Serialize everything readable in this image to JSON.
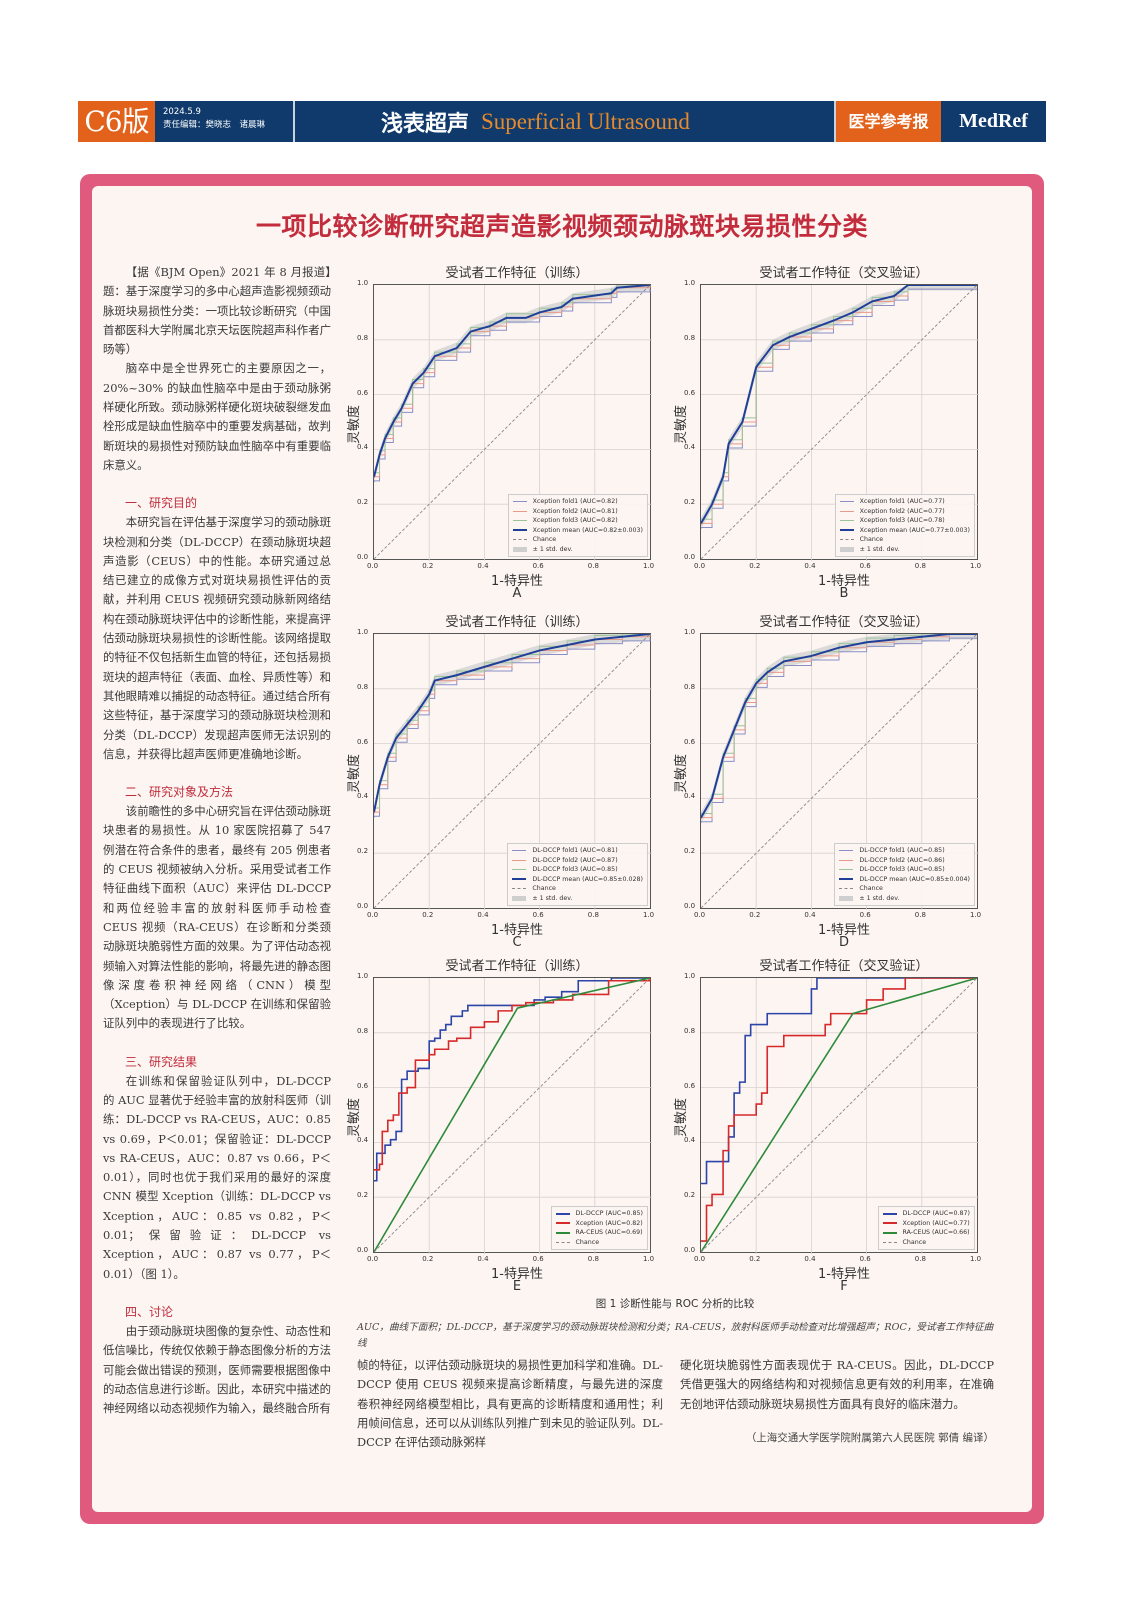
{
  "masthead": {
    "edition": "C6版",
    "date": "2024.5.9",
    "editors": "责任编辑：樊晓志　诸晨琳",
    "section_zh": "浅表超声",
    "section_en": "Superficial Ultrasound",
    "brand_zh": "医学参考报",
    "brand_en": "MedRef"
  },
  "article": {
    "headline": "一项比较诊断研究超声造影视频颈动脉斑块易损性分类",
    "intro": "【据《BJM Open》2021 年 8 月报道】题：基于深度学习的多中心超声造影视频颈动脉斑块易损性分类：一项比较诊断研究（中国首都医科大学附属北京天坛医院超声科作者广旸等）",
    "background": "脑卒中是全世界死亡的主要原因之一，20%~30% 的缺血性脑卒中是由于颈动脉粥样硬化所致。颈动脉粥样硬化斑块破裂继发血栓形成是缺血性脑卒中的重要发病基础，故判断斑块的易损性对预防缺血性脑卒中有重要临床意义。",
    "sections": [
      {
        "heading": "一、研究目的",
        "body": "本研究旨在评估基于深度学习的颈动脉斑块检测和分类（DL-DCCP）在颈动脉斑块超声造影（CEUS）中的性能。本研究通过总结已建立的成像方式对斑块易损性评估的贡献，并利用 CEUS 视频研究颈动脉新网络结构在颈动脉斑块评估中的诊断性能，来提高评估颈动脉斑块易损性的诊断性能。该网络提取的特征不仅包括新生血管的特征，还包括易损斑块的超声特征（表面、血栓、异质性等）和其他眼睛难以捕捉的动态特征。通过结合所有这些特征，基于深度学习的颈动脉斑块检测和分类（DL-DCCP）发现超声医师无法识别的信息，并获得比超声医师更准确地诊断。"
      },
      {
        "heading": "二、研究对象及方法",
        "body": "该前瞻性的多中心研究旨在评估颈动脉斑块患者的易损性。从 10 家医院招募了 547 例潜在符合条件的患者，最终有 205 例患者的 CEUS 视频被纳入分析。采用受试者工作特征曲线下面积（AUC）来评估 DL-DCCP 和两位经验丰富的放射科医师手动检查 CEUS 视频（RA-CEUS）在诊断和分类颈动脉斑块脆弱性方面的效果。为了评估动态视频输入对算法性能的影响，将最先进的静态图像深度卷积神经网络（CNN）模型（Xception）与 DL-DCCP 在训练和保留验证队列中的表现进行了比较。"
      },
      {
        "heading": "三、研究结果",
        "body": "在训练和保留验证队列中，DL-DCCP 的 AUC 显著优于经验丰富的放射科医师（训练：DL-DCCP vs RA-CEUS，AUC：0.85 vs 0.69，P＜0.01；保留验证：DL-DCCP vs RA-CEUS，AUC：0.87 vs 0.66，P＜0.01），同时也优于我们采用的最好的深度 CNN 模型 Xception（训练：DL-DCCP vs Xception，AUC：0.85 vs 0.82，P＜0.01；保留验证：DL-DCCP vs Xception，AUC：0.87 vs 0.77，P＜0.01）（图 1）。"
      },
      {
        "heading": "四、讨论",
        "body": "由于颈动脉斑块图像的复杂性、动态性和低信噪比，传统仅依赖于静态图像分析的方法可能会做出错误的预测，医师需要根据图像中的动态信息进行诊断。因此，本研究中描述的神经网络以动态视频作为输入，最终融合所有"
      }
    ],
    "continuation_col2": "帧的特征，以评估颈动脉斑块的易损性更加科学和准确。DL-DCCP 使用 CEUS 视频来提高诊断精度，与最先进的深度卷积神经网络模型相比，具有更高的诊断精度和通用性；利用帧间信息，还可以从训练队列推广到未见的验证队列。DL-DCCP 在评估颈动脉粥样",
    "continuation_col3": "硬化斑块脆弱性方面表现优于 RA-CEUS。因此，DL-DCCP 凭借更强大的网络结构和对视频信息更有效的利用率，在准确无创地评估颈动脉斑块易损性方面具有良好的临床潜力。",
    "credit": "（上海交通大学医学院附属第六人民医院 郭倩 编译）"
  },
  "figure": {
    "caption": "图 1  诊断性能与 ROC 分析的比较",
    "note": "AUC，曲线下面积；DL-DCCP，基于深度学习的颈动脉斑块检测和分类；RA-CEUS，放射科医师手动检查对比增强超声；ROC，受试者工作特征曲线",
    "xlabel": "1-特异性",
    "ylabel": "灵敏度",
    "ticks": [
      "0.0",
      "0.2",
      "0.4",
      "0.6",
      "0.8",
      "1.0"
    ]
  },
  "chart_data": [
    {
      "panel": "A",
      "type": "line",
      "title": "受试者工作特征（训练）",
      "xlabel": "1-特异性",
      "ylabel": "灵敏度",
      "xlim": [
        0,
        1
      ],
      "ylim": [
        0,
        1
      ],
      "grid": true,
      "legend_position": "lower right",
      "legend": [
        "Xception fold1 (AUC=0.82)",
        "Xception fold2 (AUC=0.81)",
        "Xception fold3 (AUC=0.82)",
        "Xception mean (AUC=0.82±0.003)",
        "Chance",
        "± 1 std. dev."
      ],
      "series": [
        {
          "name": "Xception mean (AUC=0.82±0.003)",
          "color": "#1f3f99",
          "x": [
            0,
            0.02,
            0.04,
            0.07,
            0.1,
            0.14,
            0.18,
            0.22,
            0.3,
            0.35,
            0.42,
            0.48,
            0.55,
            0.6,
            0.68,
            0.72,
            0.86,
            0.88,
            1.0
          ],
          "y": [
            0.3,
            0.38,
            0.44,
            0.5,
            0.55,
            0.64,
            0.68,
            0.74,
            0.77,
            0.83,
            0.85,
            0.88,
            0.88,
            0.9,
            0.92,
            0.95,
            0.97,
            0.99,
            1.0
          ]
        },
        {
          "name": "Chance",
          "color": "#888888",
          "x": [
            0,
            1
          ],
          "y": [
            0,
            1
          ]
        }
      ]
    },
    {
      "panel": "B",
      "type": "line",
      "title": "受试者工作特征（交叉验证）",
      "xlabel": "1-特异性",
      "ylabel": "灵敏度",
      "xlim": [
        0,
        1
      ],
      "ylim": [
        0,
        1
      ],
      "grid": true,
      "legend_position": "lower right",
      "legend": [
        "Xception fold1 (AUC=0.77)",
        "Xception fold2 (AUC=0.77)",
        "Xception fold3 (AUC=0.78)",
        "Xception mean (AUC=0.77±0.003)",
        "Chance",
        "± 1 std. dev."
      ],
      "series": [
        {
          "name": "Xception mean (AUC=0.77±0.003)",
          "color": "#1f3f99",
          "x": [
            0,
            0.04,
            0.08,
            0.1,
            0.15,
            0.2,
            0.26,
            0.32,
            0.4,
            0.48,
            0.55,
            0.62,
            0.7,
            0.75,
            1.0
          ],
          "y": [
            0.13,
            0.2,
            0.3,
            0.42,
            0.5,
            0.7,
            0.78,
            0.81,
            0.84,
            0.87,
            0.9,
            0.94,
            0.96,
            1.0,
            1.0
          ]
        },
        {
          "name": "Chance",
          "color": "#888888",
          "x": [
            0,
            1
          ],
          "y": [
            0,
            1
          ]
        }
      ]
    },
    {
      "panel": "C",
      "type": "line",
      "title": "受试者工作特征（训练）",
      "xlabel": "1-特异性",
      "ylabel": "灵敏度",
      "xlim": [
        0,
        1
      ],
      "ylim": [
        0,
        1
      ],
      "grid": true,
      "legend_position": "lower right",
      "legend": [
        "DL-DCCP fold1 (AUC=0.81)",
        "DL-DCCP fold2 (AUC=0.87)",
        "DL-DCCP fold3 (AUC=0.85)",
        "DL-DCCP mean (AUC=0.85±0.028)",
        "Chance",
        "± 1 std. dev."
      ],
      "series": [
        {
          "name": "DL-DCCP mean (AUC=0.85±0.028)",
          "color": "#1f3f99",
          "x": [
            0,
            0.02,
            0.05,
            0.08,
            0.12,
            0.16,
            0.2,
            0.22,
            0.3,
            0.4,
            0.5,
            0.6,
            0.7,
            0.8,
            0.9,
            1.0
          ],
          "y": [
            0.35,
            0.45,
            0.55,
            0.62,
            0.67,
            0.72,
            0.78,
            0.83,
            0.85,
            0.88,
            0.91,
            0.94,
            0.96,
            0.98,
            0.99,
            1.0
          ]
        },
        {
          "name": "Chance",
          "color": "#888888",
          "x": [
            0,
            1
          ],
          "y": [
            0,
            1
          ]
        }
      ]
    },
    {
      "panel": "D",
      "type": "line",
      "title": "受试者工作特征（交叉验证）",
      "xlabel": "1-特异性",
      "ylabel": "灵敏度",
      "xlim": [
        0,
        1
      ],
      "ylim": [
        0,
        1
      ],
      "grid": true,
      "legend_position": "lower right",
      "legend": [
        "DL-DCCP fold1 (AUC=0.85)",
        "DL-DCCP fold2 (AUC=0.86)",
        "DL-DCCP fold3 (AUC=0.85)",
        "DL-DCCP mean (AUC=0.85±0.004)",
        "Chance",
        "± 1 std. dev."
      ],
      "series": [
        {
          "name": "DL-DCCP mean (AUC=0.85±0.004)",
          "color": "#1f3f99",
          "x": [
            0,
            0.04,
            0.08,
            0.12,
            0.16,
            0.2,
            0.24,
            0.3,
            0.4,
            0.5,
            0.6,
            0.7,
            0.8,
            0.9,
            1.0
          ],
          "y": [
            0.33,
            0.4,
            0.55,
            0.65,
            0.75,
            0.82,
            0.86,
            0.9,
            0.92,
            0.95,
            0.97,
            0.98,
            0.99,
            1.0,
            1.0
          ]
        },
        {
          "name": "Chance",
          "color": "#888888",
          "x": [
            0,
            1
          ],
          "y": [
            0,
            1
          ]
        }
      ]
    },
    {
      "panel": "E",
      "type": "line",
      "title": "受试者工作特征（训练）",
      "xlabel": "1-特异性",
      "ylabel": "灵敏度",
      "xlim": [
        0,
        1
      ],
      "ylim": [
        0,
        1
      ],
      "grid": true,
      "legend_position": "lower right",
      "legend": [
        "DL-DCCP (AUC=0.85)",
        "Xception (AUC=0.82)",
        "RA-CEUS (AUC=0.69)",
        "Chance"
      ],
      "series": [
        {
          "name": "DL-DCCP (AUC=0.85)",
          "color": "#2b45a8",
          "x": [
            0,
            0.01,
            0.02,
            0.04,
            0.06,
            0.08,
            0.1,
            0.12,
            0.16,
            0.2,
            0.22,
            0.24,
            0.26,
            0.28,
            0.32,
            0.34,
            0.5,
            0.52,
            0.58,
            0.62,
            0.68,
            0.74,
            0.86,
            1.0
          ],
          "y": [
            0.26,
            0.36,
            0.36,
            0.39,
            0.41,
            0.44,
            0.63,
            0.66,
            0.67,
            0.77,
            0.78,
            0.81,
            0.83,
            0.86,
            0.88,
            0.9,
            0.9,
            0.9,
            0.92,
            0.93,
            0.95,
            0.99,
            1.0,
            1.0
          ]
        },
        {
          "name": "Xception (AUC=0.82)",
          "color": "#d62a2a",
          "x": [
            0,
            0.02,
            0.03,
            0.05,
            0.07,
            0.09,
            0.12,
            0.15,
            0.2,
            0.22,
            0.27,
            0.3,
            0.35,
            0.4,
            0.45,
            0.5,
            0.55,
            0.65,
            0.72,
            0.85,
            1.0
          ],
          "y": [
            0.3,
            0.32,
            0.44,
            0.48,
            0.5,
            0.58,
            0.6,
            0.7,
            0.72,
            0.74,
            0.77,
            0.78,
            0.82,
            0.84,
            0.88,
            0.9,
            0.91,
            0.92,
            0.94,
            0.99,
            1.0
          ]
        },
        {
          "name": "RA-CEUS (AUC=0.69)",
          "color": "#2e8b3a",
          "x": [
            0,
            0.52,
            1.0
          ],
          "y": [
            0,
            0.89,
            1.0
          ]
        },
        {
          "name": "Chance",
          "color": "#888888",
          "x": [
            0,
            1
          ],
          "y": [
            0,
            1
          ]
        }
      ]
    },
    {
      "panel": "F",
      "type": "line",
      "title": "受试者工作特征（交叉验证）",
      "xlabel": "1-特异性",
      "ylabel": "灵敏度",
      "xlim": [
        0,
        1
      ],
      "ylim": [
        0,
        1
      ],
      "grid": true,
      "legend_position": "lower right",
      "legend": [
        "DL-DCCP (AUC=0.87)",
        "Xception (AUC=0.77)",
        "RA-CEUS (AUC=0.66)",
        "Chance"
      ],
      "series": [
        {
          "name": "DL-DCCP (AUC=0.87)",
          "color": "#2b45a8",
          "x": [
            0,
            0.02,
            0.08,
            0.1,
            0.12,
            0.14,
            0.16,
            0.18,
            0.24,
            0.4,
            0.42,
            1.0
          ],
          "y": [
            0.25,
            0.33,
            0.33,
            0.42,
            0.58,
            0.62,
            0.79,
            0.83,
            0.87,
            0.96,
            1.0,
            1.0
          ]
        },
        {
          "name": "Xception (AUC=0.77)",
          "color": "#d62a2a",
          "x": [
            0,
            0.02,
            0.04,
            0.08,
            0.1,
            0.12,
            0.18,
            0.2,
            0.22,
            0.24,
            0.3,
            0.45,
            0.47,
            0.6,
            0.66,
            0.72,
            0.74,
            1.0
          ],
          "y": [
            0.04,
            0.17,
            0.21,
            0.37,
            0.46,
            0.5,
            0.5,
            0.54,
            0.58,
            0.75,
            0.79,
            0.83,
            0.87,
            0.92,
            0.96,
            0.96,
            1.0,
            1.0
          ]
        },
        {
          "name": "RA-CEUS (AUC=0.66)",
          "color": "#2e8b3a",
          "x": [
            0,
            0.55,
            1.0
          ],
          "y": [
            0,
            0.87,
            1.0
          ]
        },
        {
          "name": "Chance",
          "color": "#888888",
          "x": [
            0,
            1
          ],
          "y": [
            0,
            1
          ]
        }
      ]
    }
  ]
}
